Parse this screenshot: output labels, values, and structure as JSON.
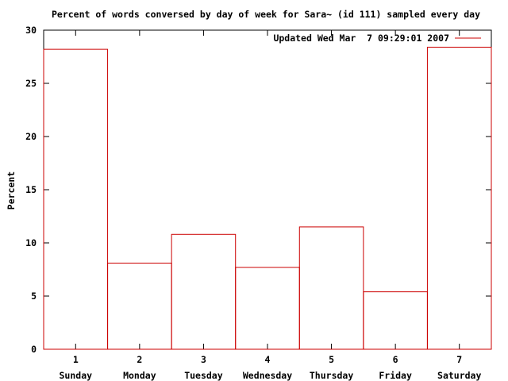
{
  "chart_data": {
    "type": "bar",
    "title": "Percent of words conversed by day of week for Sara~ (id 111) sampled every day",
    "xlabel": "",
    "ylabel": "Percent",
    "x": [
      "1",
      "2",
      "3",
      "4",
      "5",
      "6",
      "7"
    ],
    "categories": [
      "Sunday",
      "Monday",
      "Tuesday",
      "Wednesday",
      "Thursday",
      "Friday",
      "Saturday"
    ],
    "series": [
      {
        "name": "Updated Wed Mar  7 09:29:01 2007",
        "values": [
          28.2,
          8.1,
          10.8,
          7.7,
          11.5,
          5.4,
          28.4
        ],
        "color": "#cc0000"
      }
    ],
    "ylim": [
      0,
      30
    ],
    "yticks": [
      "0",
      "5",
      "10",
      "15",
      "20",
      "25",
      "30"
    ],
    "xlim": [
      0.5,
      7.5
    ],
    "grid": false,
    "legend": "top-right",
    "style": "histogram-steps-outline"
  }
}
